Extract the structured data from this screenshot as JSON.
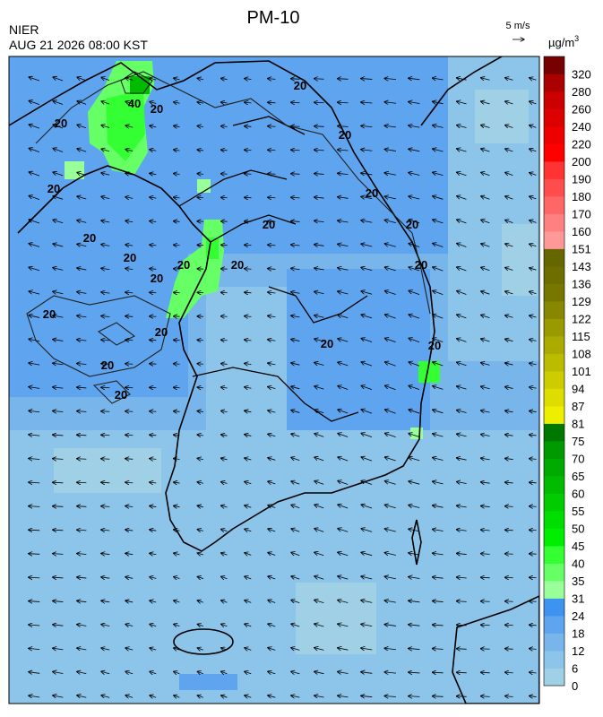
{
  "header": {
    "title": "PM-10",
    "agency": "NIER",
    "datetime": "AUG 21 2026 08:00 KST",
    "wind_scale": "5 m/s",
    "unit": "µg/m",
    "unit_superscript": "3"
  },
  "legend": {
    "labels": [
      0,
      6,
      12,
      18,
      24,
      31,
      35,
      40,
      45,
      50,
      55,
      60,
      65,
      70,
      75,
      81,
      87,
      94,
      101,
      108,
      115,
      122,
      129,
      136,
      143,
      151,
      160,
      170,
      180,
      190,
      200,
      220,
      240,
      260,
      280,
      320
    ],
    "colors": [
      "#9fd0e6",
      "#8cc4ea",
      "#78b5eb",
      "#5fa4ee",
      "#3f93f0",
      "#99ff99",
      "#66ff66",
      "#33ff33",
      "#00ee00",
      "#00dd00",
      "#00cc00",
      "#00bb00",
      "#00aa00",
      "#009900",
      "#007700",
      "#eeee00",
      "#dddd00",
      "#cccc00",
      "#bbbb00",
      "#aaaa00",
      "#999900",
      "#888800",
      "#777700",
      "#6e6e00",
      "#666600",
      "#ff9999",
      "#ff8080",
      "#ff6666",
      "#ff4d4d",
      "#ff3333",
      "#ff0000",
      "#ee0000",
      "#dd0000",
      "#cc0000",
      "#aa0000",
      "#770000"
    ]
  },
  "contour_labels": [
    "20",
    "40",
    "20",
    "20",
    "20",
    "20",
    "20",
    "20",
    "20",
    "20",
    "20",
    "20",
    "20",
    "20",
    "20",
    "20",
    "20",
    "20",
    "20",
    "20",
    "20"
  ]
}
